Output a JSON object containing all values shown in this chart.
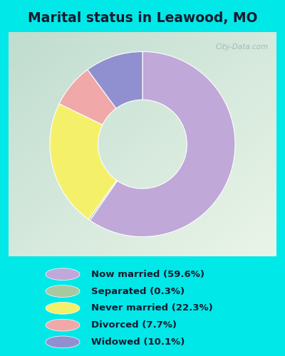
{
  "title": "Marital status in Leawood, MO",
  "slices": [
    59.6,
    0.3,
    22.3,
    7.7,
    10.1
  ],
  "labels": [
    "Now married (59.6%)",
    "Separated (0.3%)",
    "Never married (22.3%)",
    "Divorced (7.7%)",
    "Widowed (10.1%)"
  ],
  "colors": [
    "#c0a8d8",
    "#a8c8a0",
    "#f5f06a",
    "#f0a8a8",
    "#9090d0"
  ],
  "background_outer": "#00e8e8",
  "title_fontsize": 13.5,
  "watermark": "City-Data.com",
  "donut_width": 0.52,
  "chart_bg_left": "#c0ddd0",
  "chart_bg_right": "#eaf5e8"
}
